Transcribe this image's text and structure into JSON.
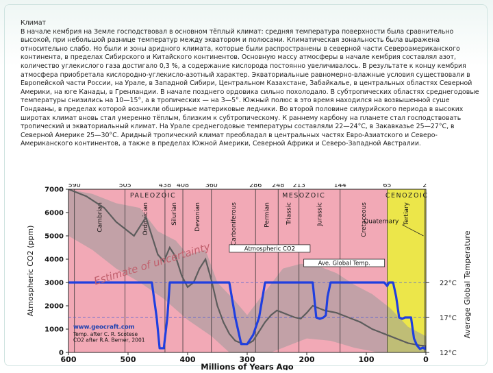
{
  "slide": {
    "heading": "Климат",
    "body": "В начале кембрия на Земле господствовал в основном тёплый климат: средняя температура поверхности была сравнительно высокой, при небольшой разнице температур между экватором и полюсами. Климатическая зональность была выражена относительно слабо. Но были и зоны аридного климата, которые были распространены в северной части Североамериканского континента, в пределах Сибирского и Китайского континентов. Основную массу атмосферы в начале кембрия составлял азот, количество углекислого газа достигало 0,3 %, а содержание кислорода постоянно увеличивалось. В результате к концу кембрия атмосфера приобретала кислородно-углекисло-азотный характер. Экваториальные равномерно-влажные условия существовали в Европейской части России, на Урале, в Западной Сибири, Центральном Казахстане, Забайкалье, в центральных областях Северной Америки, на юге Канады, в Гренландии. В начале позднего ордовика сильно похолодало. В субтропических областях среднегодовые температуры снизились на 10—15°, а в тропических — на 3—5°. Южный полюс в это время находился на возвышенной суше Гондваны, в пределах которой возникли обширные материковые ледники. Во второй половине силурийского периода в высоких широтах климат вновь стал умеренно тёплым, близким к субтропическому. К раннему карбону на планете стал господствовать тропический и экваториальный климат. На Урале среднегодовые температуры составляли 22—24°С, в Закавказье 25—27°С, в Северной Америке 25—30°С. Аридный тропический климат преобладал в центральных частях Евро-Азиатского и Северо-Американского континентов, а также в пределах Южной Америки, Северной Африки и Северо-Западной Австралии."
  },
  "figure": {
    "top_ticks": [
      "590",
      "505",
      "438",
      "408",
      "360",
      "286",
      "248",
      "213",
      "144",
      "65",
      "2"
    ],
    "eras": [
      "PALEOZOIC",
      "MESOZOIC",
      "CENOZOIC"
    ],
    "periods": [
      "Cambrian",
      "Ordovician",
      "Silurian",
      "Devonian",
      "Carboniferous",
      "Permian",
      "Triassic",
      "Jurassic",
      "Cretaceous",
      "Tertiary"
    ],
    "quaternary_label": "Quaternary",
    "left_axis_label": "Atmospheric CO2 (ppm)",
    "right_axis_label": "Average Global Temperature",
    "x_axis_label": "Millions of Years Ago",
    "left_ticks": [
      "7000",
      "6000",
      "5000",
      "4000",
      "3000",
      "2000",
      "1000",
      "0"
    ],
    "right_ticks": [
      "22°C",
      "17°C",
      "12°C"
    ],
    "x_ticks": [
      "600",
      "500",
      "400",
      "300",
      "200",
      "100",
      "0"
    ],
    "uncertainty_text": "Estimate of uncertainty",
    "co2_legend": "Atmospheric CO2",
    "temp_legend": "Ave. Global Temp.",
    "credit_site": "www.geocraft.com",
    "credit_line1": "Temp. after C. R. Scotese",
    "credit_line2": "CO2 after R.A. Berner, 2001",
    "colors": {
      "pink": "#f2a9b6",
      "yellow": "#ece64a",
      "grey_band": "#9a9a9a",
      "co2_line": "#5c5c5c",
      "temp_line": "#1f3fe0"
    }
  },
  "chart_data": {
    "type": "line",
    "xlabel": "Millions of Years Ago",
    "ylabel": "Atmospheric CO2 (ppm)",
    "y2label": "Average Global Temperature",
    "xlim": [
      600,
      0
    ],
    "ylim": [
      0,
      7000
    ],
    "y2lim": [
      12,
      22
    ],
    "period_boundaries": [
      590,
      505,
      438,
      408,
      360,
      286,
      248,
      213,
      144,
      65,
      2
    ],
    "series": [
      {
        "name": "Atmospheric CO2",
        "x": [
          600,
          570,
          540,
          520,
          505,
          490,
          470,
          450,
          440,
          430,
          420,
          410,
          400,
          390,
          380,
          370,
          360,
          350,
          340,
          330,
          320,
          310,
          300,
          290,
          280,
          270,
          260,
          250,
          240,
          230,
          220,
          210,
          200,
          190,
          180,
          170,
          160,
          150,
          140,
          130,
          120,
          110,
          100,
          90,
          80,
          70,
          60,
          50,
          40,
          30,
          20,
          10,
          0
        ],
        "values": [
          7000,
          6700,
          6200,
          5600,
          5300,
          5000,
          5800,
          4200,
          3900,
          4500,
          4100,
          3300,
          2800,
          3000,
          3600,
          4000,
          3100,
          2000,
          1300,
          800,
          500,
          400,
          350,
          500,
          900,
          1300,
          1600,
          1800,
          1700,
          1600,
          1500,
          1450,
          1700,
          2000,
          1900,
          1800,
          1750,
          1700,
          1600,
          1500,
          1400,
          1300,
          1150,
          1000,
          900,
          800,
          700,
          600,
          500,
          400,
          350,
          300,
          280
        ]
      },
      {
        "name": "Ave. Global Temp.",
        "x": [
          600,
          530,
          460,
          452,
          447,
          440,
          434,
          430,
          420,
          410,
          400,
          380,
          360,
          340,
          330,
          320,
          310,
          300,
          290,
          280,
          270,
          260,
          250,
          230,
          210,
          190,
          184,
          178,
          172,
          168,
          165,
          160,
          150,
          140,
          120,
          100,
          85,
          70,
          65,
          62,
          55,
          50,
          45,
          40,
          35,
          30,
          25,
          20,
          15,
          10,
          5,
          2,
          0
        ],
        "values": [
          22,
          22,
          22,
          17,
          12.6,
          12.6,
          17,
          22,
          22,
          22,
          22,
          22,
          22,
          22,
          22,
          17,
          13.2,
          13.2,
          14.5,
          17,
          22,
          22,
          22,
          22,
          22,
          22,
          17,
          16.8,
          17,
          17.3,
          20,
          22,
          22,
          22,
          22,
          22,
          22,
          22,
          21.5,
          22,
          22,
          20,
          17,
          16.8,
          17,
          17,
          17,
          14,
          13,
          12.5,
          12.7,
          12.5,
          12.8
        ]
      }
    ],
    "annotations": [
      "Estimate of uncertainty",
      "Quaternary"
    ]
  }
}
